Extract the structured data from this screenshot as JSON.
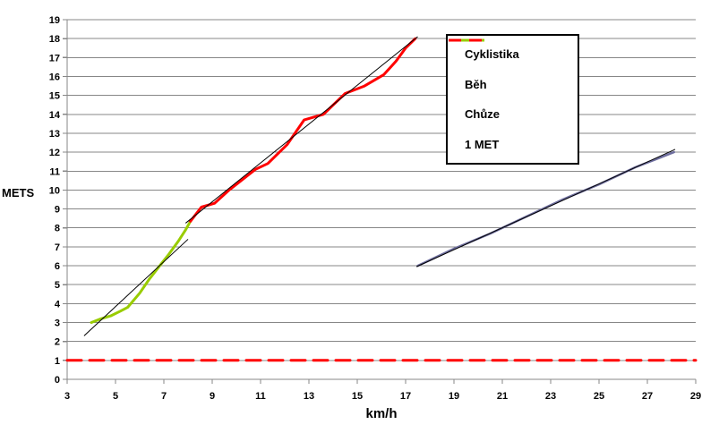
{
  "chart_data": {
    "type": "line",
    "title": "",
    "xlabel": "km/h",
    "ylabel": "METS",
    "xlim": [
      3,
      29
    ],
    "ylim": [
      0,
      19
    ],
    "x_ticks": [
      3,
      5,
      7,
      9,
      11,
      13,
      15,
      17,
      19,
      21,
      23,
      25,
      27,
      29
    ],
    "y_ticks": [
      0,
      1,
      2,
      3,
      4,
      5,
      6,
      7,
      8,
      9,
      10,
      11,
      12,
      13,
      14,
      15,
      16,
      17,
      18,
      19
    ],
    "grid": "horizontal-every-1",
    "legend_position": "inside-top-right",
    "series": [
      {
        "name": "Cyklistika",
        "color": "#6E6E9E",
        "width": 2.5,
        "dash": null,
        "points": [
          [
            17.5,
            6.0
          ],
          [
            19.0,
            6.9
          ],
          [
            20.5,
            7.7
          ],
          [
            22.0,
            8.6
          ],
          [
            23.5,
            9.5
          ],
          [
            25.0,
            10.3
          ],
          [
            26.5,
            11.2
          ],
          [
            27.3,
            11.6
          ],
          [
            28.1,
            12.0
          ]
        ]
      },
      {
        "name": "Běh",
        "color": "#FF0000",
        "width": 3,
        "dash": null,
        "points": [
          [
            8.1,
            8.35
          ],
          [
            8.55,
            9.1
          ],
          [
            9.1,
            9.3
          ],
          [
            9.7,
            10.0
          ],
          [
            10.8,
            11.1
          ],
          [
            11.3,
            11.4
          ],
          [
            12.1,
            12.4
          ],
          [
            12.8,
            13.7
          ],
          [
            13.6,
            14.0
          ],
          [
            14.5,
            15.1
          ],
          [
            15.3,
            15.5
          ],
          [
            16.1,
            16.1
          ],
          [
            16.6,
            16.8
          ],
          [
            17.0,
            17.5
          ],
          [
            17.4,
            18.0
          ]
        ]
      },
      {
        "name": "Chůze",
        "color": "#99CC00",
        "width": 3,
        "dash": null,
        "points": [
          [
            4.0,
            3.0
          ],
          [
            4.4,
            3.2
          ],
          [
            4.8,
            3.35
          ],
          [
            5.2,
            3.6
          ],
          [
            5.5,
            3.8
          ],
          [
            6.0,
            4.55
          ],
          [
            6.4,
            5.3
          ],
          [
            6.8,
            5.95
          ],
          [
            7.2,
            6.6
          ],
          [
            7.6,
            7.3
          ],
          [
            7.9,
            7.9
          ],
          [
            8.1,
            8.35
          ]
        ]
      },
      {
        "name": "1 MET",
        "color": "#FF0000",
        "width": 3,
        "dash": "16 9",
        "points": [
          [
            3,
            1
          ],
          [
            29,
            1
          ]
        ]
      }
    ],
    "trendlines": [
      {
        "for": "Chůze",
        "points": [
          [
            3.7,
            2.3
          ],
          [
            8.0,
            7.4
          ]
        ]
      },
      {
        "for": "Běh",
        "points": [
          [
            7.9,
            8.25
          ],
          [
            17.5,
            18.1
          ]
        ]
      },
      {
        "for": "Cyklistika",
        "points": [
          [
            17.45,
            5.95
          ],
          [
            28.15,
            12.15
          ]
        ]
      }
    ]
  },
  "colors": {
    "grid": "#878787",
    "axis": "#878787",
    "tick_label": "#000000",
    "trendline": "#000000",
    "legend_border": "#000000",
    "background": "#FFFFFF"
  }
}
